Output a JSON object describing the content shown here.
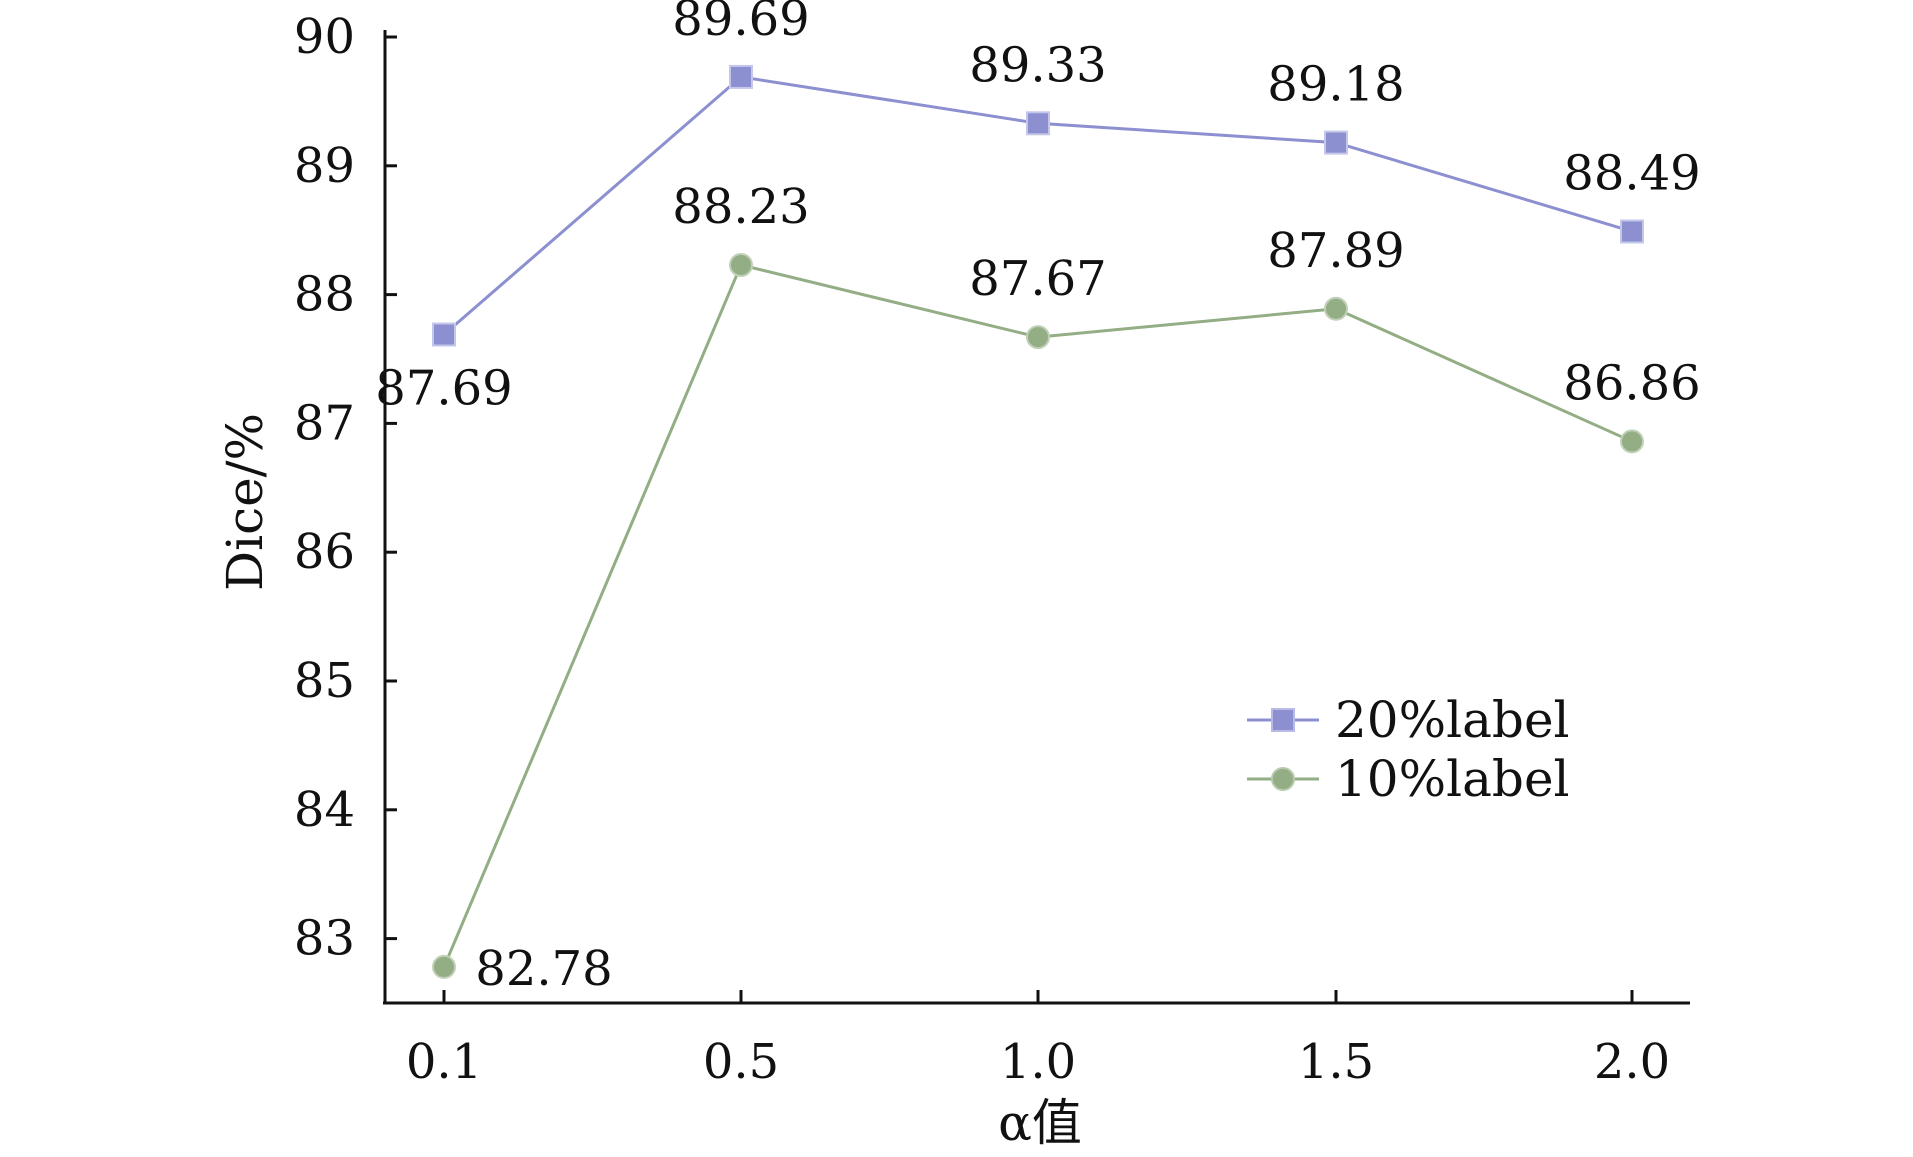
{
  "chart_data": {
    "type": "line",
    "xlabel": "α值",
    "ylabel": "Dice/%",
    "x": [
      "0.1",
      "0.5",
      "1.0",
      "1.5",
      "2.0"
    ],
    "ylim": [
      82.5,
      90
    ],
    "yticks": [
      83,
      84,
      85,
      86,
      87,
      88,
      89,
      90
    ],
    "grid": false,
    "legend_position": "center-right",
    "series": [
      {
        "name": "20%label",
        "marker": "square",
        "color": "#8c8fd0",
        "values": [
          87.69,
          89.69,
          89.33,
          89.18,
          88.49
        ],
        "labels": [
          "87.69",
          "89.69",
          "89.33",
          "89.18",
          "88.49"
        ]
      },
      {
        "name": "10%label",
        "marker": "circle",
        "color": "#93ad85",
        "values": [
          82.78,
          88.23,
          87.67,
          87.89,
          86.86
        ],
        "labels": [
          "82.78",
          "88.23",
          "87.67",
          "87.89",
          "86.86"
        ]
      }
    ]
  }
}
